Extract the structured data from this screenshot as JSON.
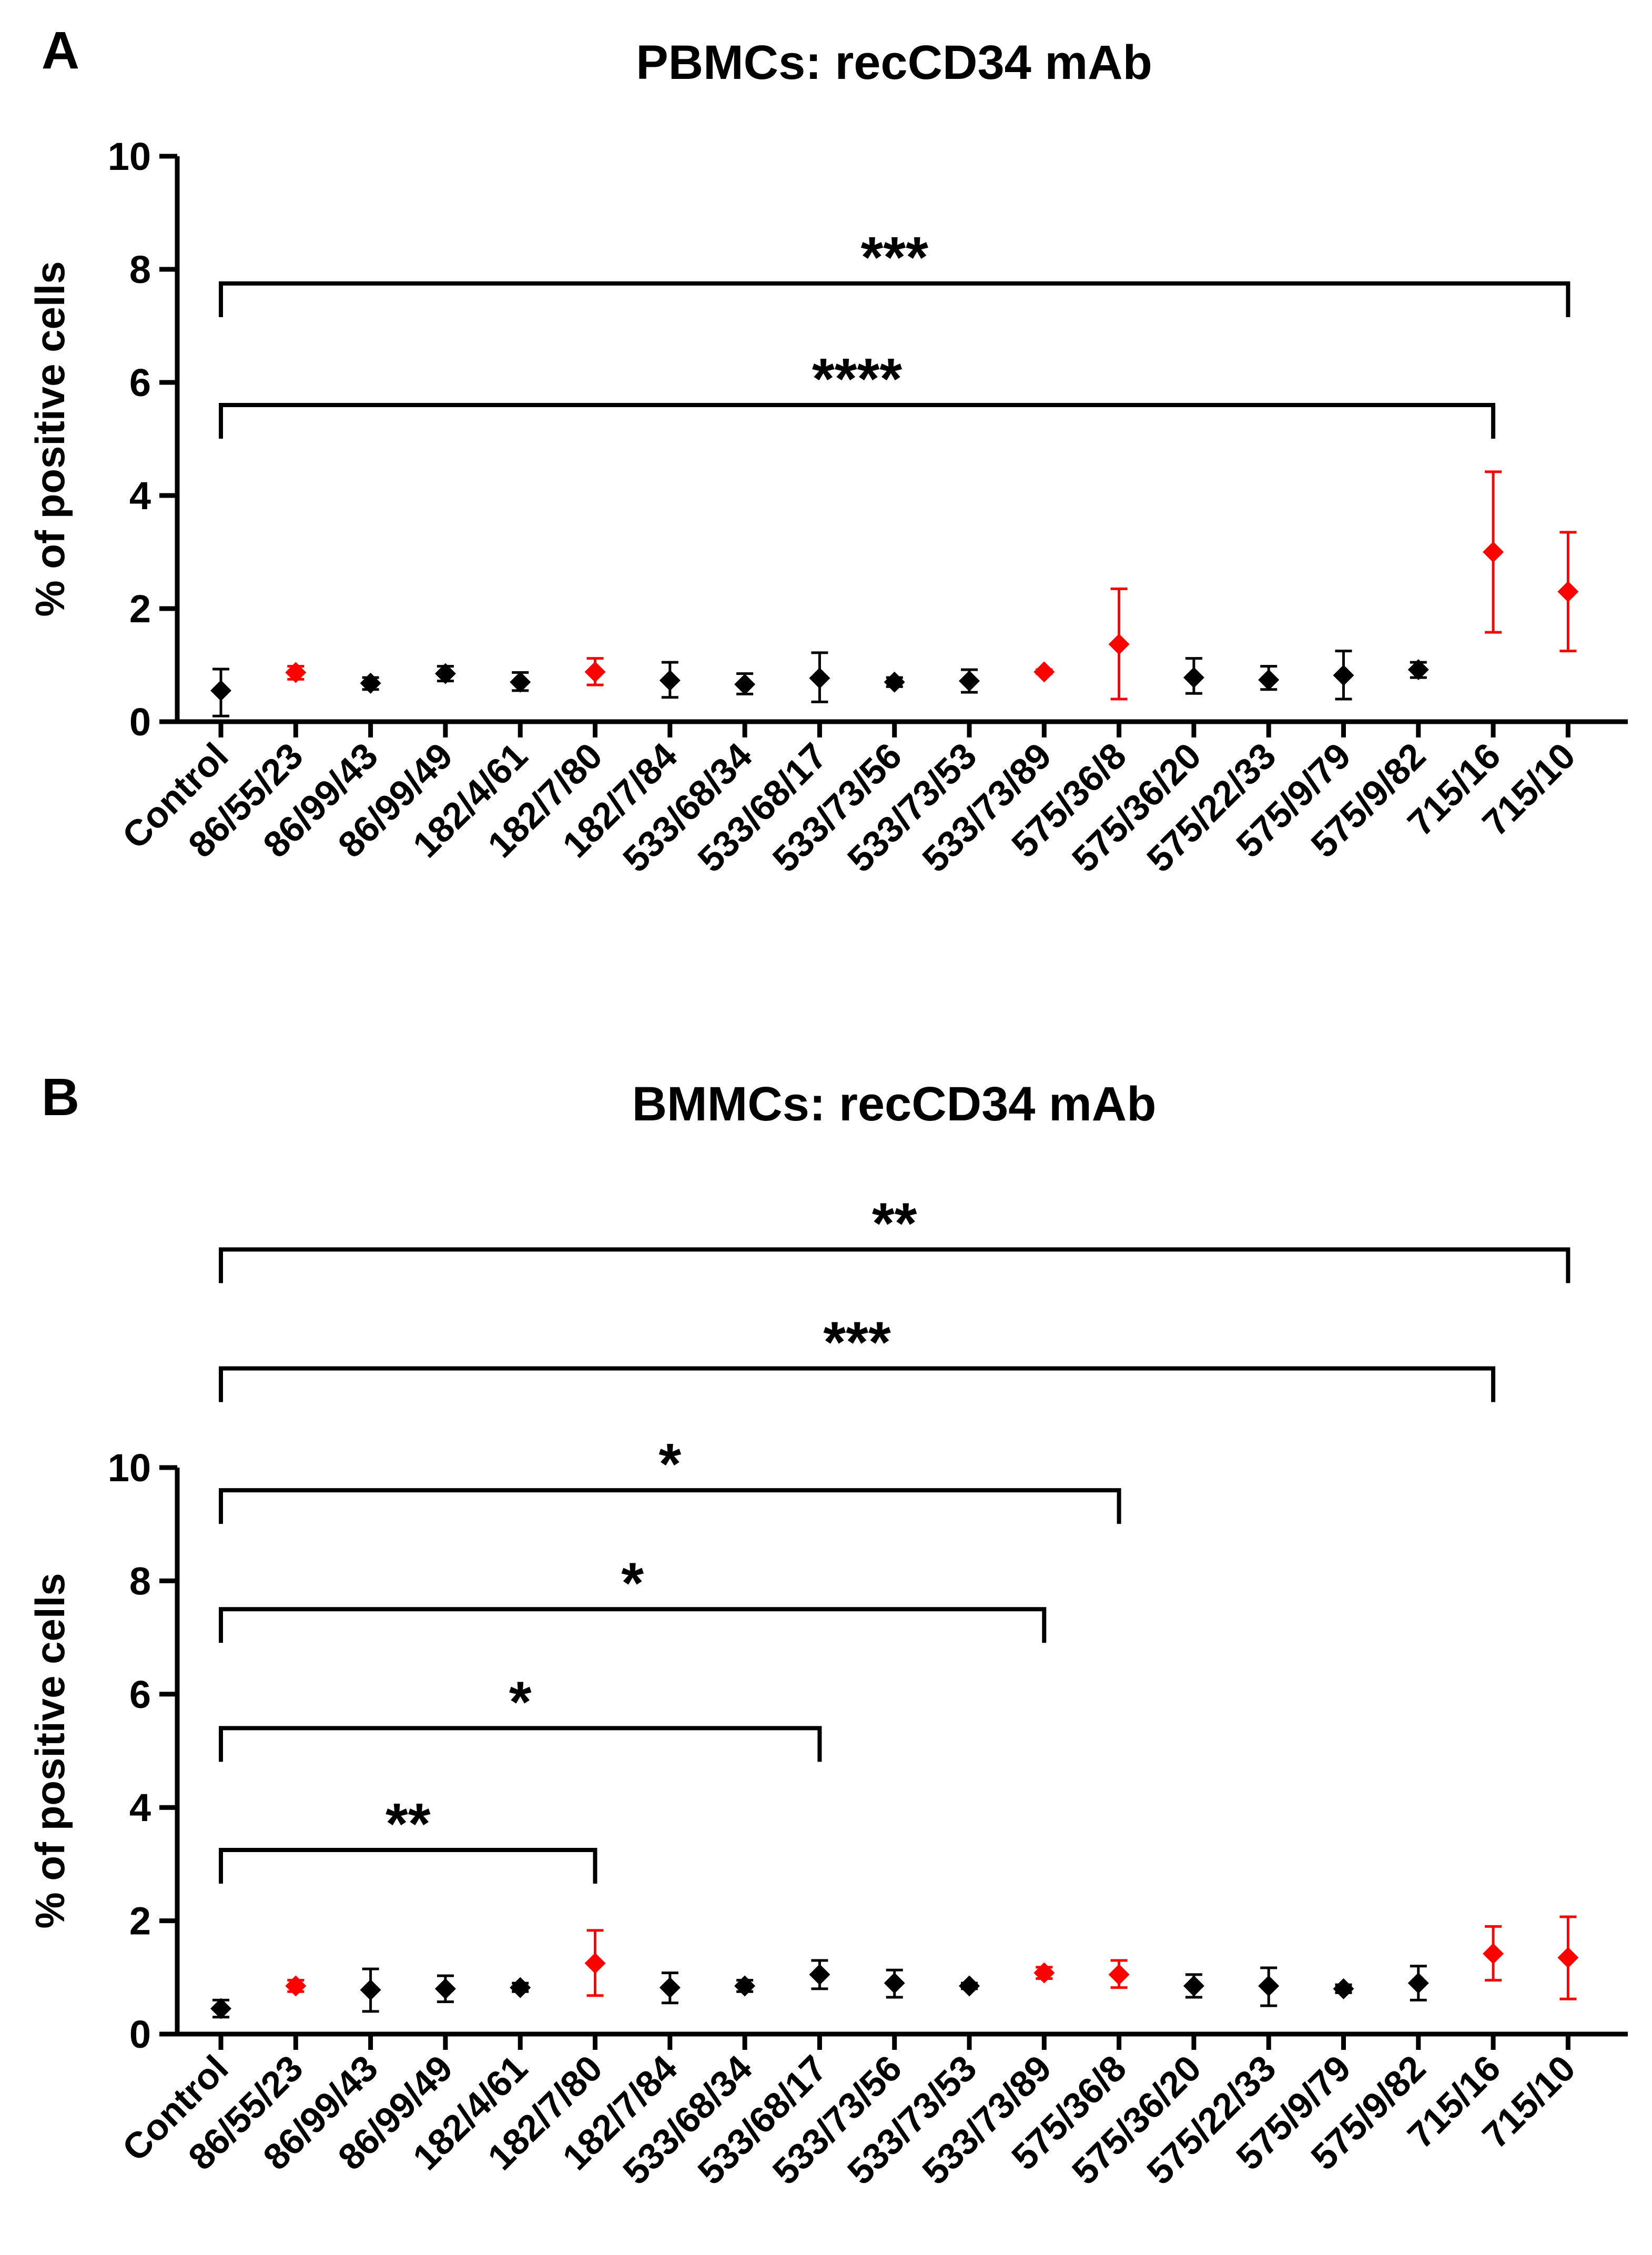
{
  "chart_data": [
    {
      "panel_label": "A",
      "type": "scatter",
      "title": "PBMCs: recCD34 mAb",
      "xlabel": "",
      "ylabel": "% of positive cells",
      "ylim": [
        0,
        10
      ],
      "yticks": [
        "0",
        "2",
        "4",
        "6",
        "8",
        "10"
      ],
      "categories": [
        "Control",
        "86/55/23",
        "86/99/43",
        "86/99/49",
        "182/4/61",
        "182/7/80",
        "182/7/84",
        "533/68/34",
        "533/68/17",
        "533/73/56",
        "533/73/53",
        "533/73/89",
        "575/36/8",
        "575/36/20",
        "575/22/33",
        "575/9/79",
        "575/9/82",
        "715/16",
        "715/10"
      ],
      "means": [
        0.55,
        0.87,
        0.68,
        0.85,
        0.7,
        0.88,
        0.73,
        0.66,
        0.77,
        0.7,
        0.72,
        0.88,
        1.37,
        0.78,
        0.74,
        0.82,
        0.92,
        3.0,
        2.3
      ],
      "err_low": [
        0.1,
        0.75,
        0.57,
        0.72,
        0.55,
        0.65,
        0.43,
        0.49,
        0.35,
        0.62,
        0.52,
        0.85,
        0.4,
        0.5,
        0.57,
        0.4,
        0.78,
        1.58,
        1.25
      ],
      "err_high": [
        0.93,
        0.98,
        0.78,
        0.98,
        0.87,
        1.12,
        1.05,
        0.85,
        1.22,
        0.78,
        0.92,
        0.92,
        2.35,
        1.12,
        0.98,
        1.25,
        1.05,
        4.42,
        3.35
      ],
      "highlighted": [
        false,
        true,
        false,
        false,
        false,
        true,
        false,
        false,
        false,
        false,
        false,
        true,
        true,
        false,
        false,
        false,
        false,
        true,
        true
      ],
      "colors": {
        "normal": "#000000",
        "highlight": "#ff0000",
        "axis": "#000000"
      },
      "significance": [
        {
          "from": "Control",
          "to": "715/10",
          "label": "***",
          "level": 7.75
        },
        {
          "from": "Control",
          "to": "715/16",
          "label": "****",
          "level": 5.6
        }
      ]
    },
    {
      "panel_label": "B",
      "type": "scatter",
      "title": "BMMCs: recCD34 mAb",
      "xlabel": "",
      "ylabel": "% of positive cells",
      "ylim": [
        0,
        10
      ],
      "yticks": [
        "0",
        "2",
        "4",
        "6",
        "8",
        "10"
      ],
      "categories": [
        "Control",
        "86/55/23",
        "86/99/43",
        "86/99/49",
        "182/4/61",
        "182/7/80",
        "182/7/84",
        "533/68/34",
        "533/68/17",
        "533/73/56",
        "533/73/53",
        "533/73/89",
        "575/36/8",
        "575/36/20",
        "575/22/33",
        "575/9/79",
        "575/9/82",
        "715/16",
        "715/10"
      ],
      "means": [
        0.45,
        0.85,
        0.78,
        0.8,
        0.82,
        1.25,
        0.82,
        0.85,
        1.05,
        0.9,
        0.85,
        1.08,
        1.05,
        0.85,
        0.85,
        0.8,
        0.9,
        1.42,
        1.35
      ],
      "err_low": [
        0.3,
        0.75,
        0.4,
        0.57,
        0.75,
        0.68,
        0.55,
        0.75,
        0.8,
        0.65,
        0.8,
        0.98,
        0.82,
        0.65,
        0.5,
        0.73,
        0.6,
        0.95,
        0.62
      ],
      "err_high": [
        0.6,
        0.95,
        1.15,
        1.03,
        0.9,
        1.83,
        1.08,
        0.95,
        1.3,
        1.13,
        0.9,
        1.18,
        1.3,
        1.05,
        1.17,
        0.87,
        1.2,
        1.9,
        2.07
      ],
      "highlighted": [
        false,
        true,
        false,
        false,
        false,
        true,
        false,
        false,
        false,
        false,
        false,
        true,
        true,
        false,
        false,
        false,
        false,
        true,
        true
      ],
      "colors": {
        "normal": "#000000",
        "highlight": "#ff0000",
        "axis": "#000000"
      },
      "significance": [
        {
          "from": "Control",
          "to": "715/10",
          "label": "**",
          "level": 13.85
        },
        {
          "from": "Control",
          "to": "715/16",
          "label": "***",
          "level": 11.75
        },
        {
          "from": "Control",
          "to": "575/36/8",
          "label": "*",
          "level": 9.6
        },
        {
          "from": "Control",
          "to": "533/73/89",
          "label": "*",
          "level": 7.5
        },
        {
          "from": "Control",
          "to": "533/68/17",
          "label": "*",
          "level": 5.4
        },
        {
          "from": "Control",
          "to": "182/7/80",
          "label": "**",
          "level": 3.25
        }
      ]
    }
  ]
}
